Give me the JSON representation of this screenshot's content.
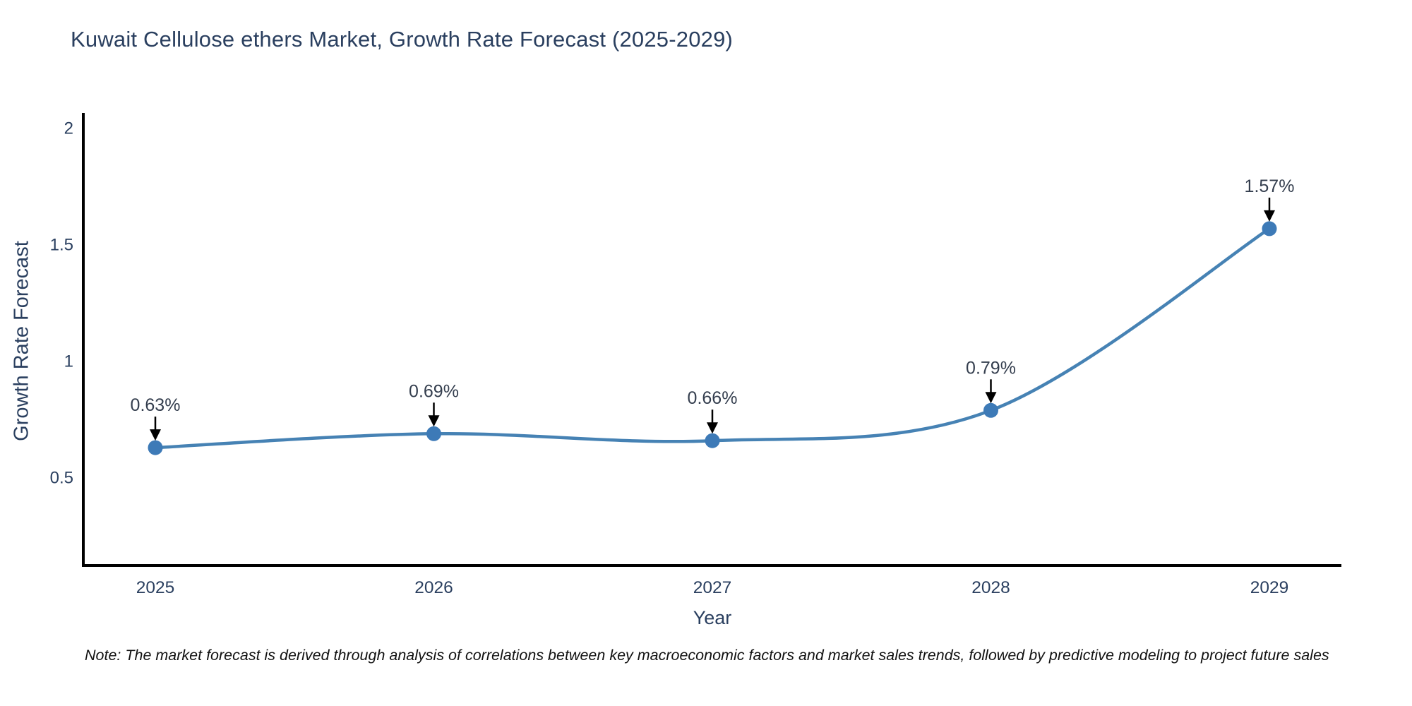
{
  "chart_data": {
    "type": "line",
    "title": "Kuwait Cellulose ethers Market, Growth Rate Forecast (2025-2029)",
    "xlabel": "Year",
    "ylabel": "Growth Rate Forecast",
    "categories": [
      "2025",
      "2026",
      "2027",
      "2028",
      "2029"
    ],
    "series": [
      {
        "name": "Growth Rate Forecast",
        "values": [
          0.63,
          0.69,
          0.66,
          0.79,
          1.57
        ]
      }
    ],
    "point_labels": [
      "0.63%",
      "0.69%",
      "0.66%",
      "0.79%",
      "1.57%"
    ],
    "yticks": [
      "0.5",
      "1",
      "1.5",
      "2"
    ],
    "ytick_values": [
      0.5,
      1,
      1.5,
      2
    ],
    "ylim": [
      0.12,
      2.07
    ],
    "grid": false,
    "legend": "none",
    "line_color": "#4682b4",
    "marker_color": "#3d7ab7",
    "arrow_color": "#000000"
  },
  "note": "Note: The market forecast is derived through analysis of correlations between key macroeconomic factors and market sales trends, followed by predictive modeling to project future sales",
  "colors": {
    "title_text": "#2a3f5f",
    "tick_text": "#2a3f5f",
    "annotation_text": "#343e4e",
    "note_text": "#111111",
    "axis": "#000000",
    "background": "#ffffff"
  }
}
